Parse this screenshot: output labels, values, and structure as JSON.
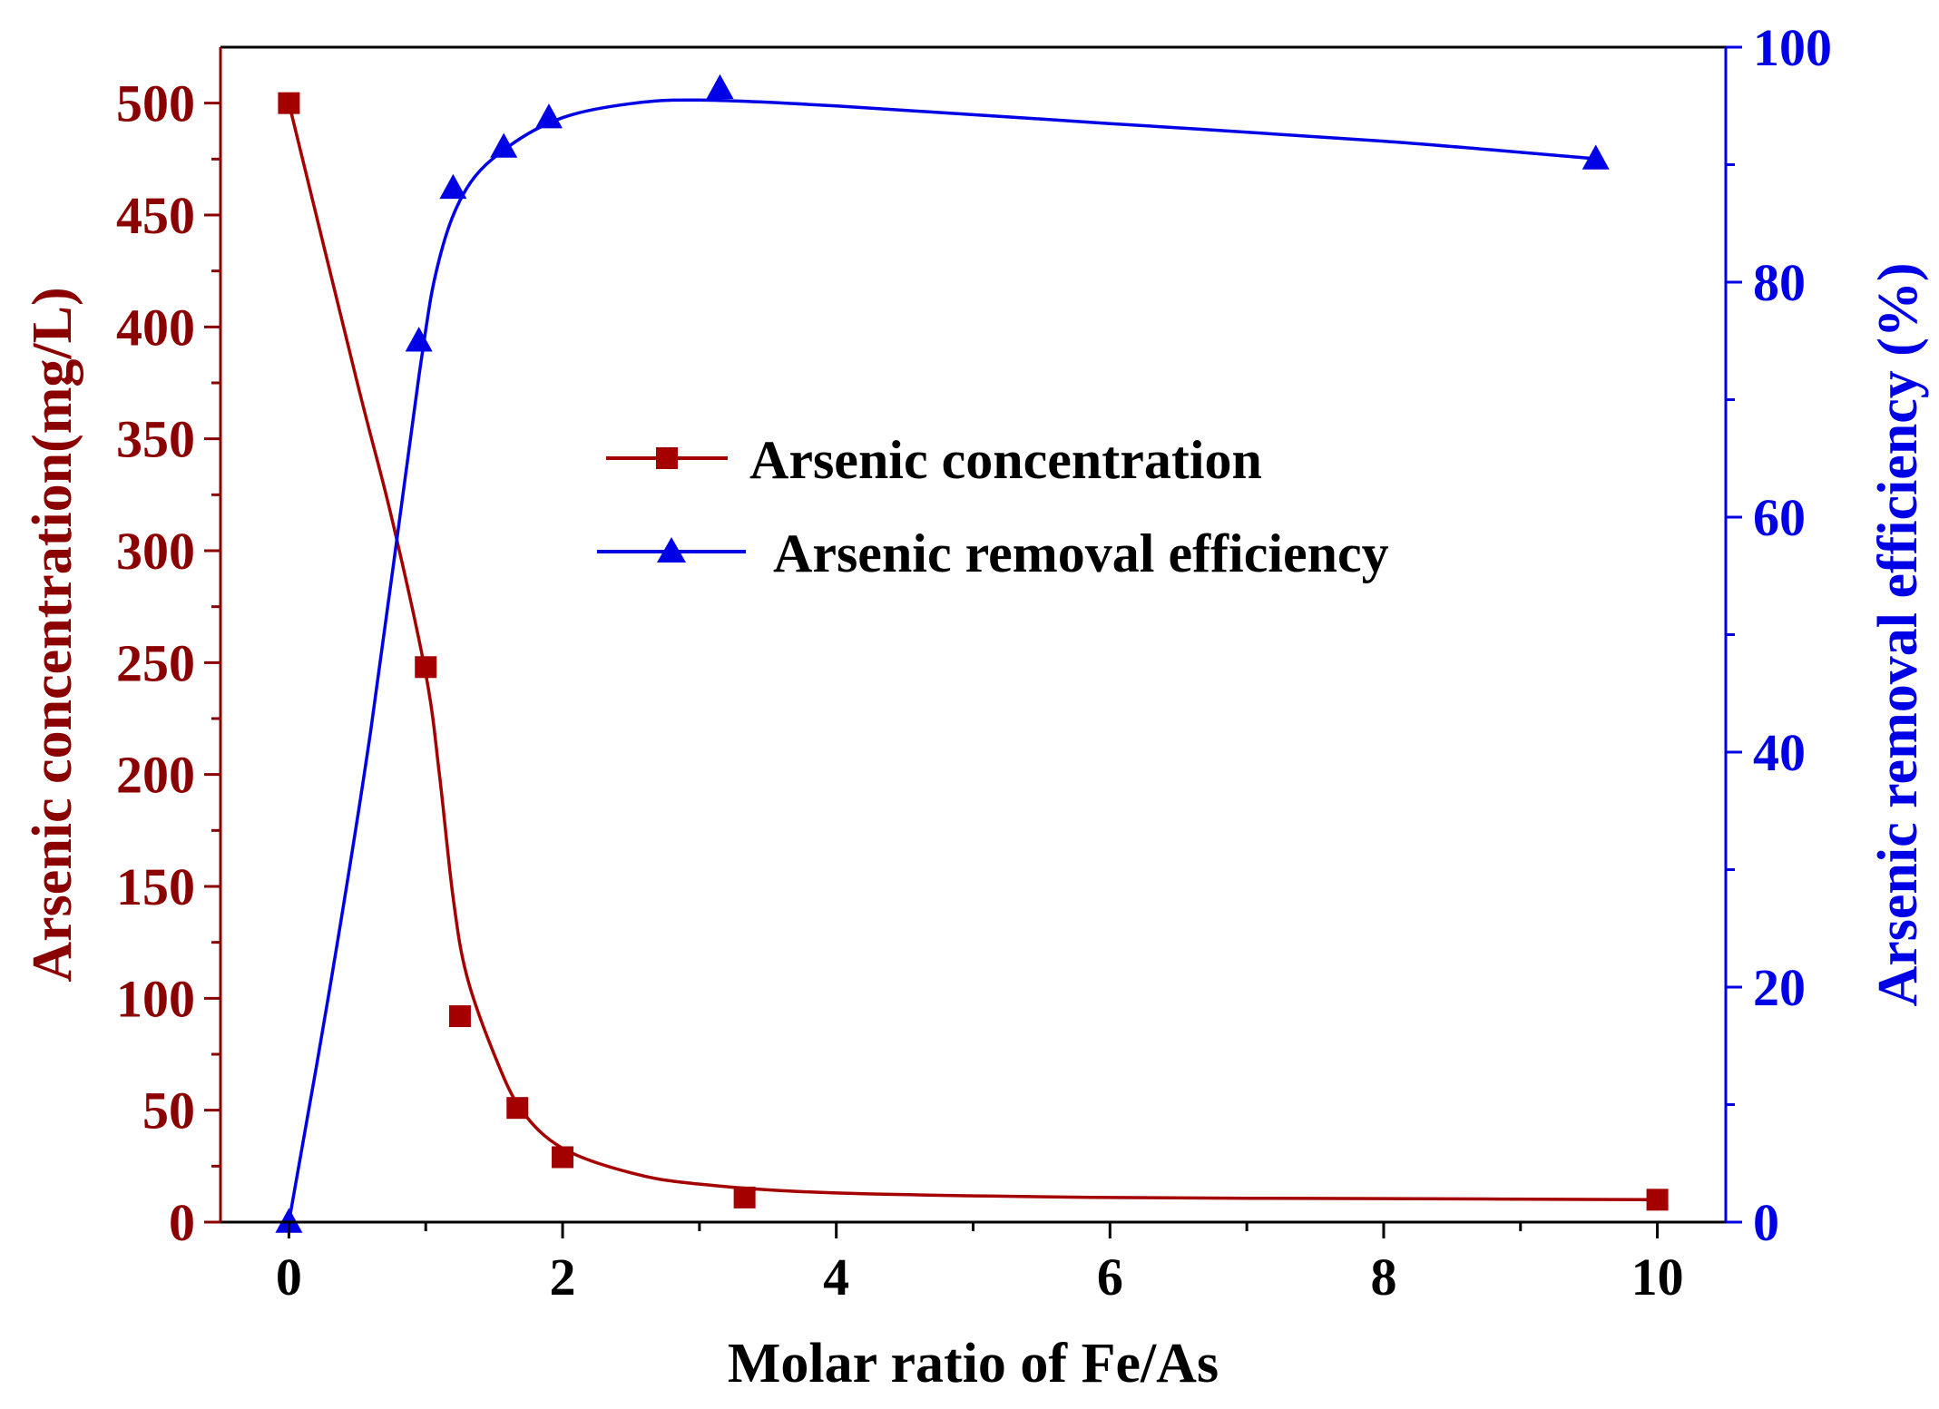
{
  "chart_data": {
    "type": "line",
    "x_axis": {
      "label": "Molar ratio of Fe/As",
      "range": [
        -0.5,
        10.5
      ],
      "ticks": [
        0,
        2,
        4,
        6,
        8,
        10
      ],
      "tick_labels": [
        "0",
        "2",
        "4",
        "6",
        "8",
        "10"
      ],
      "minor_ticks": [
        1,
        3,
        5,
        7,
        9
      ]
    },
    "y_axis_left": {
      "label": "Arsenic concentration(mg/L)",
      "range": [
        0,
        525
      ],
      "ticks": [
        0,
        50,
        100,
        150,
        200,
        250,
        300,
        350,
        400,
        450,
        500
      ],
      "tick_labels": [
        "0",
        "50",
        "100",
        "150",
        "200",
        "250",
        "300",
        "350",
        "400",
        "450",
        "500"
      ],
      "minor_ticks": [
        25,
        75,
        125,
        175,
        225,
        275,
        325,
        375,
        425,
        475
      ],
      "color": "#8b0000"
    },
    "y_axis_right": {
      "label": "Arsenic removal efficiency (%)",
      "range": [
        0,
        100
      ],
      "ticks": [
        0,
        20,
        40,
        60,
        80,
        100
      ],
      "tick_labels": [
        "0",
        "20",
        "40",
        "60",
        "80",
        "100"
      ],
      "minor_ticks": [
        10,
        30,
        50,
        70,
        90
      ],
      "color": "#0000e6"
    },
    "series": [
      {
        "name": "Arsenic concentration",
        "axis": "left",
        "marker": "square",
        "color": "#a40000",
        "points": [
          {
            "x": 0,
            "y": 500
          },
          {
            "x": 1.0,
            "y": 248
          },
          {
            "x": 1.25,
            "y": 92
          },
          {
            "x": 1.67,
            "y": 51
          },
          {
            "x": 2.0,
            "y": 29
          },
          {
            "x": 3.33,
            "y": 11
          },
          {
            "x": 10,
            "y": 10
          }
        ],
        "fit_curve": [
          {
            "x": 0,
            "y": 500
          },
          {
            "x": 0.5,
            "y": 375
          },
          {
            "x": 0.75,
            "y": 315
          },
          {
            "x": 1.0,
            "y": 245
          },
          {
            "x": 1.1,
            "y": 200
          },
          {
            "x": 1.2,
            "y": 145
          },
          {
            "x": 1.3,
            "y": 110
          },
          {
            "x": 1.5,
            "y": 75
          },
          {
            "x": 1.7,
            "y": 50
          },
          {
            "x": 2.0,
            "y": 33
          },
          {
            "x": 2.5,
            "y": 22
          },
          {
            "x": 3.0,
            "y": 17
          },
          {
            "x": 4.0,
            "y": 13
          },
          {
            "x": 6.0,
            "y": 11
          },
          {
            "x": 8.0,
            "y": 10.5
          },
          {
            "x": 10.0,
            "y": 10
          }
        ]
      },
      {
        "name": "Arsenic removal efficiency",
        "axis": "right",
        "marker": "triangle",
        "color": "#0000e6",
        "points": [
          {
            "x": 0,
            "y": 0
          },
          {
            "x": 0.95,
            "y": 75
          },
          {
            "x": 1.2,
            "y": 88
          },
          {
            "x": 1.57,
            "y": 91.5
          },
          {
            "x": 1.9,
            "y": 94
          },
          {
            "x": 3.15,
            "y": 96.5
          },
          {
            "x": 9.55,
            "y": 90.5
          }
        ],
        "fit_curve": [
          {
            "x": 0,
            "y": 0
          },
          {
            "x": 0.3,
            "y": 20
          },
          {
            "x": 0.6,
            "y": 42
          },
          {
            "x": 0.95,
            "y": 72
          },
          {
            "x": 1.1,
            "y": 82
          },
          {
            "x": 1.3,
            "y": 88
          },
          {
            "x": 1.6,
            "y": 91.5
          },
          {
            "x": 2.0,
            "y": 94
          },
          {
            "x": 2.5,
            "y": 95.2
          },
          {
            "x": 3.0,
            "y": 95.5
          },
          {
            "x": 4.0,
            "y": 95
          },
          {
            "x": 6.0,
            "y": 93.5
          },
          {
            "x": 8.0,
            "y": 92
          },
          {
            "x": 9.55,
            "y": 90.5
          }
        ]
      }
    ],
    "legend": {
      "placement": "center",
      "entries": [
        "Arsenic concentration",
        "Arsenic removal efficiency"
      ]
    },
    "grid": false
  }
}
